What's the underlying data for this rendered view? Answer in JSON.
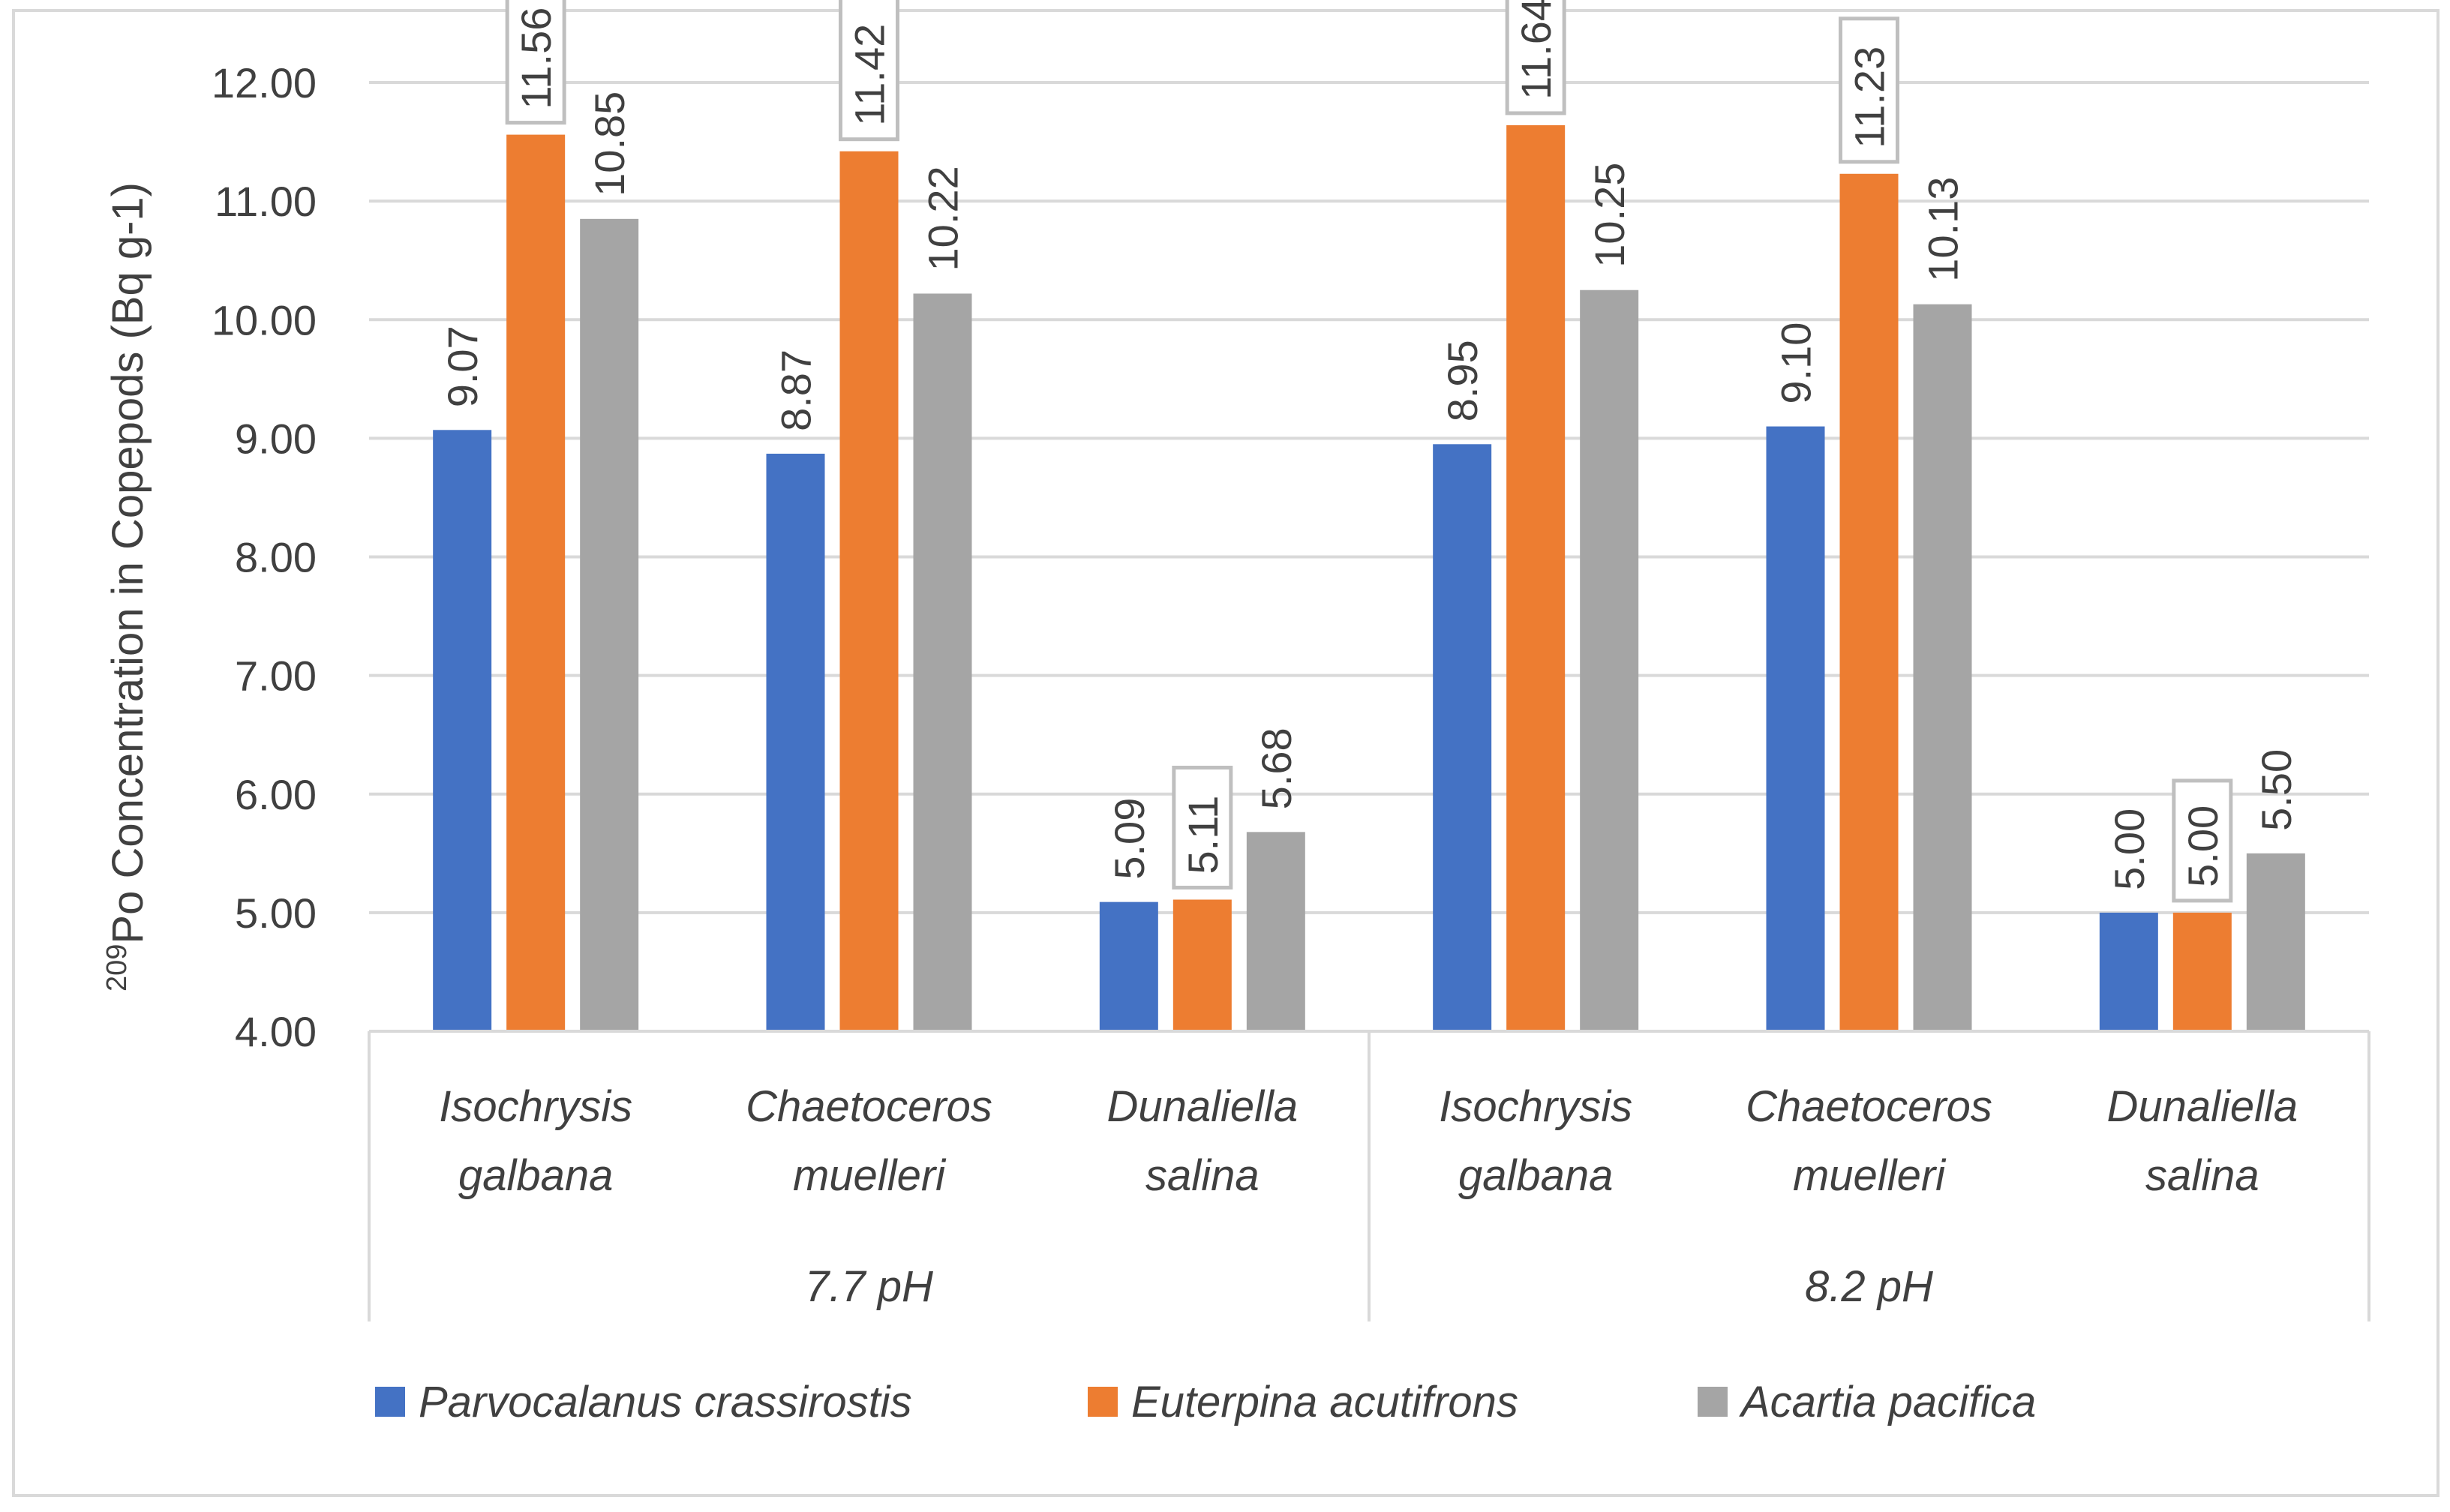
{
  "chart_data": {
    "type": "bar",
    "ylabel_superscript": "209",
    "ylabel": "Po Concentration in Copepods (Bq g-1)",
    "ylim": [
      4.0,
      12.0
    ],
    "ytick_step": 1.0,
    "yticks": [
      "4.00",
      "5.00",
      "6.00",
      "7.00",
      "8.00",
      "9.00",
      "10.00",
      "11.00",
      "12.00"
    ],
    "gridlines": true,
    "legend_position": "bottom",
    "groups": [
      {
        "label": "7.7 pH",
        "categories": [
          [
            "Isochrysis",
            "galbana"
          ],
          [
            "Chaetoceros",
            "muelleri"
          ],
          [
            "Dunaliella",
            "salina"
          ]
        ]
      },
      {
        "label": "8.2 pH",
        "categories": [
          [
            "Isochrysis",
            "galbana"
          ],
          [
            "Chaetoceros",
            "muelleri"
          ],
          [
            "Dunaliella",
            "salina"
          ]
        ]
      }
    ],
    "series": [
      {
        "name": "Parvocalanus crassirostis",
        "color": "#4472C4",
        "values": [
          9.07,
          8.87,
          5.09,
          8.95,
          9.1,
          5.0
        ],
        "labels": [
          "9.07",
          "8.87",
          "5.09",
          "8.95",
          "9.10",
          "5.00"
        ]
      },
      {
        "name": "Euterpina acutifrons",
        "color": "#ED7D31",
        "values": [
          11.56,
          11.42,
          5.11,
          11.64,
          11.23,
          5.0
        ],
        "labels": [
          "11.56",
          "11.42",
          "5.11",
          "11.64",
          "11.23",
          "5.00"
        ]
      },
      {
        "name": "Acartia pacifica",
        "color": "#A5A5A5",
        "values": [
          10.85,
          10.22,
          5.68,
          10.25,
          10.13,
          5.5
        ],
        "labels": [
          "10.85",
          "10.22",
          "5.68",
          "10.25",
          "10.13",
          "5.50"
        ]
      }
    ],
    "boxed_label_series": "Euterpina acutifrons"
  },
  "colors": {
    "grid": "#D9D9D9",
    "axis_text": "#404040",
    "frame": "#D9D9D9",
    "label_box": "#BFBFBF"
  }
}
